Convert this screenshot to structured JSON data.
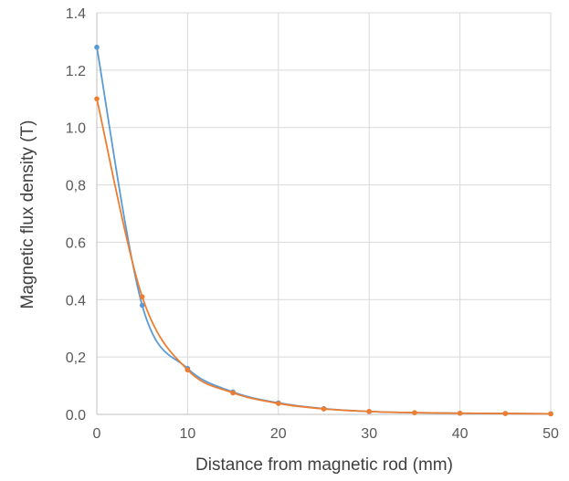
{
  "chart_data": {
    "type": "line",
    "title": "",
    "xlabel": "Distance from magnetic rod (mm)",
    "ylabel": "Magnetic flux density (T)",
    "xlim": [
      0,
      50
    ],
    "ylim": [
      0,
      1.4
    ],
    "x_ticks": [
      0,
      10,
      20,
      30,
      40,
      50
    ],
    "x_tick_labels": [
      "0",
      "10",
      "20",
      "30",
      "40",
      "50"
    ],
    "y_ticks": [
      0,
      0.2,
      0.4,
      0.6,
      0.8,
      1.0,
      1.2,
      1.4
    ],
    "y_tick_labels": [
      "0.0",
      "0,2",
      "0.4",
      "0.6",
      "0,8",
      "1.0",
      "1.2",
      "1.4"
    ],
    "grid": true,
    "legend": "none",
    "series": [
      {
        "color": "#5b9bd5",
        "x": [
          0,
          5,
          10,
          15,
          20,
          25,
          30,
          35,
          40,
          45,
          50
        ],
        "y": [
          1.28,
          0.38,
          0.16,
          0.078,
          0.04,
          0.02,
          0.01,
          0.006,
          0.004,
          0.003,
          0.002
        ]
      },
      {
        "color": "#ed7d31",
        "x": [
          0,
          5,
          10,
          15,
          20,
          25,
          30,
          35,
          40,
          45,
          50
        ],
        "y": [
          1.1,
          0.41,
          0.155,
          0.075,
          0.038,
          0.019,
          0.01,
          0.006,
          0.004,
          0.003,
          0.002
        ]
      }
    ]
  }
}
